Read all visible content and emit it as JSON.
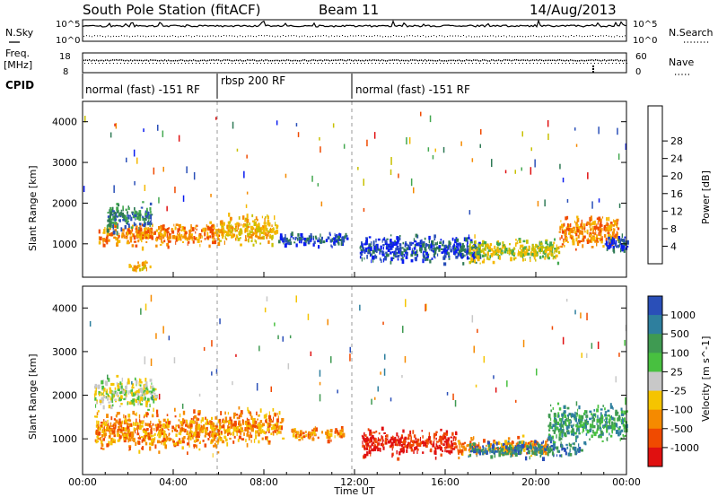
{
  "header": {
    "station": "South Pole Station (fitACF)",
    "beam": "Beam 11",
    "date": "14/Aug/2013"
  },
  "side_labels": {
    "nsky": "N.Sky",
    "nsearch": "N.Search",
    "freq_line1": "Freq.",
    "freq_line2": "[MHz]",
    "nave": "Nave",
    "cpid": "CPID"
  },
  "noise_axis": {
    "top": "10^5",
    "bottom": "10^0",
    "top_right": "10^5",
    "bottom_right": "10^0"
  },
  "freq_axis": {
    "top": "18",
    "bottom": "8",
    "top_right": "60",
    "bottom_right": "0"
  },
  "cpid_segments": [
    {
      "label": "normal (fast) -151 RF",
      "start_h": 0,
      "end_h": 6
    },
    {
      "label": "rbsp 200 RF",
      "start_h": 6,
      "end_h": 12
    },
    {
      "label": "normal (fast) -151 RF",
      "start_h": 12,
      "end_h": 24
    }
  ],
  "power_colorbar": {
    "label": "Power [dB]",
    "ticks": [
      "4",
      "8",
      "12",
      "16",
      "20",
      "24",
      "28"
    ],
    "colors": [
      "#0a1cf0",
      "#2a4fb8",
      "#2f7a55",
      "#43a84f",
      "#c8c000",
      "#f5b800",
      "#f58a00",
      "#f04a00",
      "#e01010"
    ]
  },
  "velocity_colorbar": {
    "label": "Velocity [m s^-1]",
    "ticks": [
      "1000",
      "500",
      "100",
      "25",
      "-25",
      "-100",
      "-500",
      "-1000"
    ],
    "colors": [
      "#2a4fb8",
      "#2e7f9e",
      "#3f9a52",
      "#48c040",
      "#c8c8c8",
      "#f5c400",
      "#f58a00",
      "#f04a00",
      "#e01010"
    ]
  },
  "chart_data": {
    "type": "heatmap",
    "xlabel": "Time UT",
    "x_ticks": [
      "00:00",
      "04:00",
      "08:00",
      "12:00",
      "16:00",
      "20:00",
      "00:00"
    ],
    "xlim_hours": [
      0,
      24
    ],
    "ylabel": "Slant Range [km]",
    "y_ticks": [
      1000,
      2000,
      3000,
      4000
    ],
    "ylim_km": [
      180,
      4500
    ],
    "panels": [
      {
        "name": "power",
        "blobs": [
          {
            "t0": 0.7,
            "t1": 6.0,
            "r0": 850,
            "r1": 1600,
            "level": 6
          },
          {
            "t0": 1.0,
            "t1": 3.0,
            "r0": 1200,
            "r1": 2100,
            "level": 2
          },
          {
            "t0": 2.0,
            "t1": 3.0,
            "r0": 300,
            "r1": 600,
            "level": 5
          },
          {
            "t0": 6.0,
            "t1": 8.6,
            "r0": 850,
            "r1": 1800,
            "level": 5
          },
          {
            "t0": 8.6,
            "t1": 11.7,
            "r0": 900,
            "r1": 1300,
            "level": 1
          },
          {
            "t0": 12.2,
            "t1": 17.5,
            "r0": 450,
            "r1": 1300,
            "level": 1
          },
          {
            "t0": 17.0,
            "t1": 21.0,
            "r0": 450,
            "r1": 1200,
            "level": 4
          },
          {
            "t0": 21.0,
            "t1": 23.6,
            "r0": 800,
            "r1": 1800,
            "level": 6
          },
          {
            "t0": 23.0,
            "t1": 24.0,
            "r0": 700,
            "r1": 1300,
            "level": 1
          }
        ]
      },
      {
        "name": "velocity",
        "blobs": [
          {
            "t0": 0.5,
            "t1": 6.0,
            "r0": 600,
            "r1": 1750,
            "level": 6
          },
          {
            "t0": 0.5,
            "t1": 3.2,
            "r0": 1600,
            "r1": 2500,
            "level": 4
          },
          {
            "t0": 6.0,
            "t1": 8.8,
            "r0": 750,
            "r1": 1800,
            "level": 6
          },
          {
            "t0": 9.2,
            "t1": 11.5,
            "r0": 900,
            "r1": 1300,
            "level": 6
          },
          {
            "t0": 12.3,
            "t1": 16.5,
            "r0": 500,
            "r1": 1300,
            "level": 8
          },
          {
            "t0": 16.5,
            "t1": 20.5,
            "r0": 500,
            "r1": 1100,
            "level": 6
          },
          {
            "t0": 17.0,
            "t1": 22.0,
            "r0": 500,
            "r1": 1000,
            "level": 1
          },
          {
            "t0": 20.5,
            "t1": 24.0,
            "r0": 800,
            "r1": 1900,
            "level": 2
          }
        ]
      }
    ]
  }
}
